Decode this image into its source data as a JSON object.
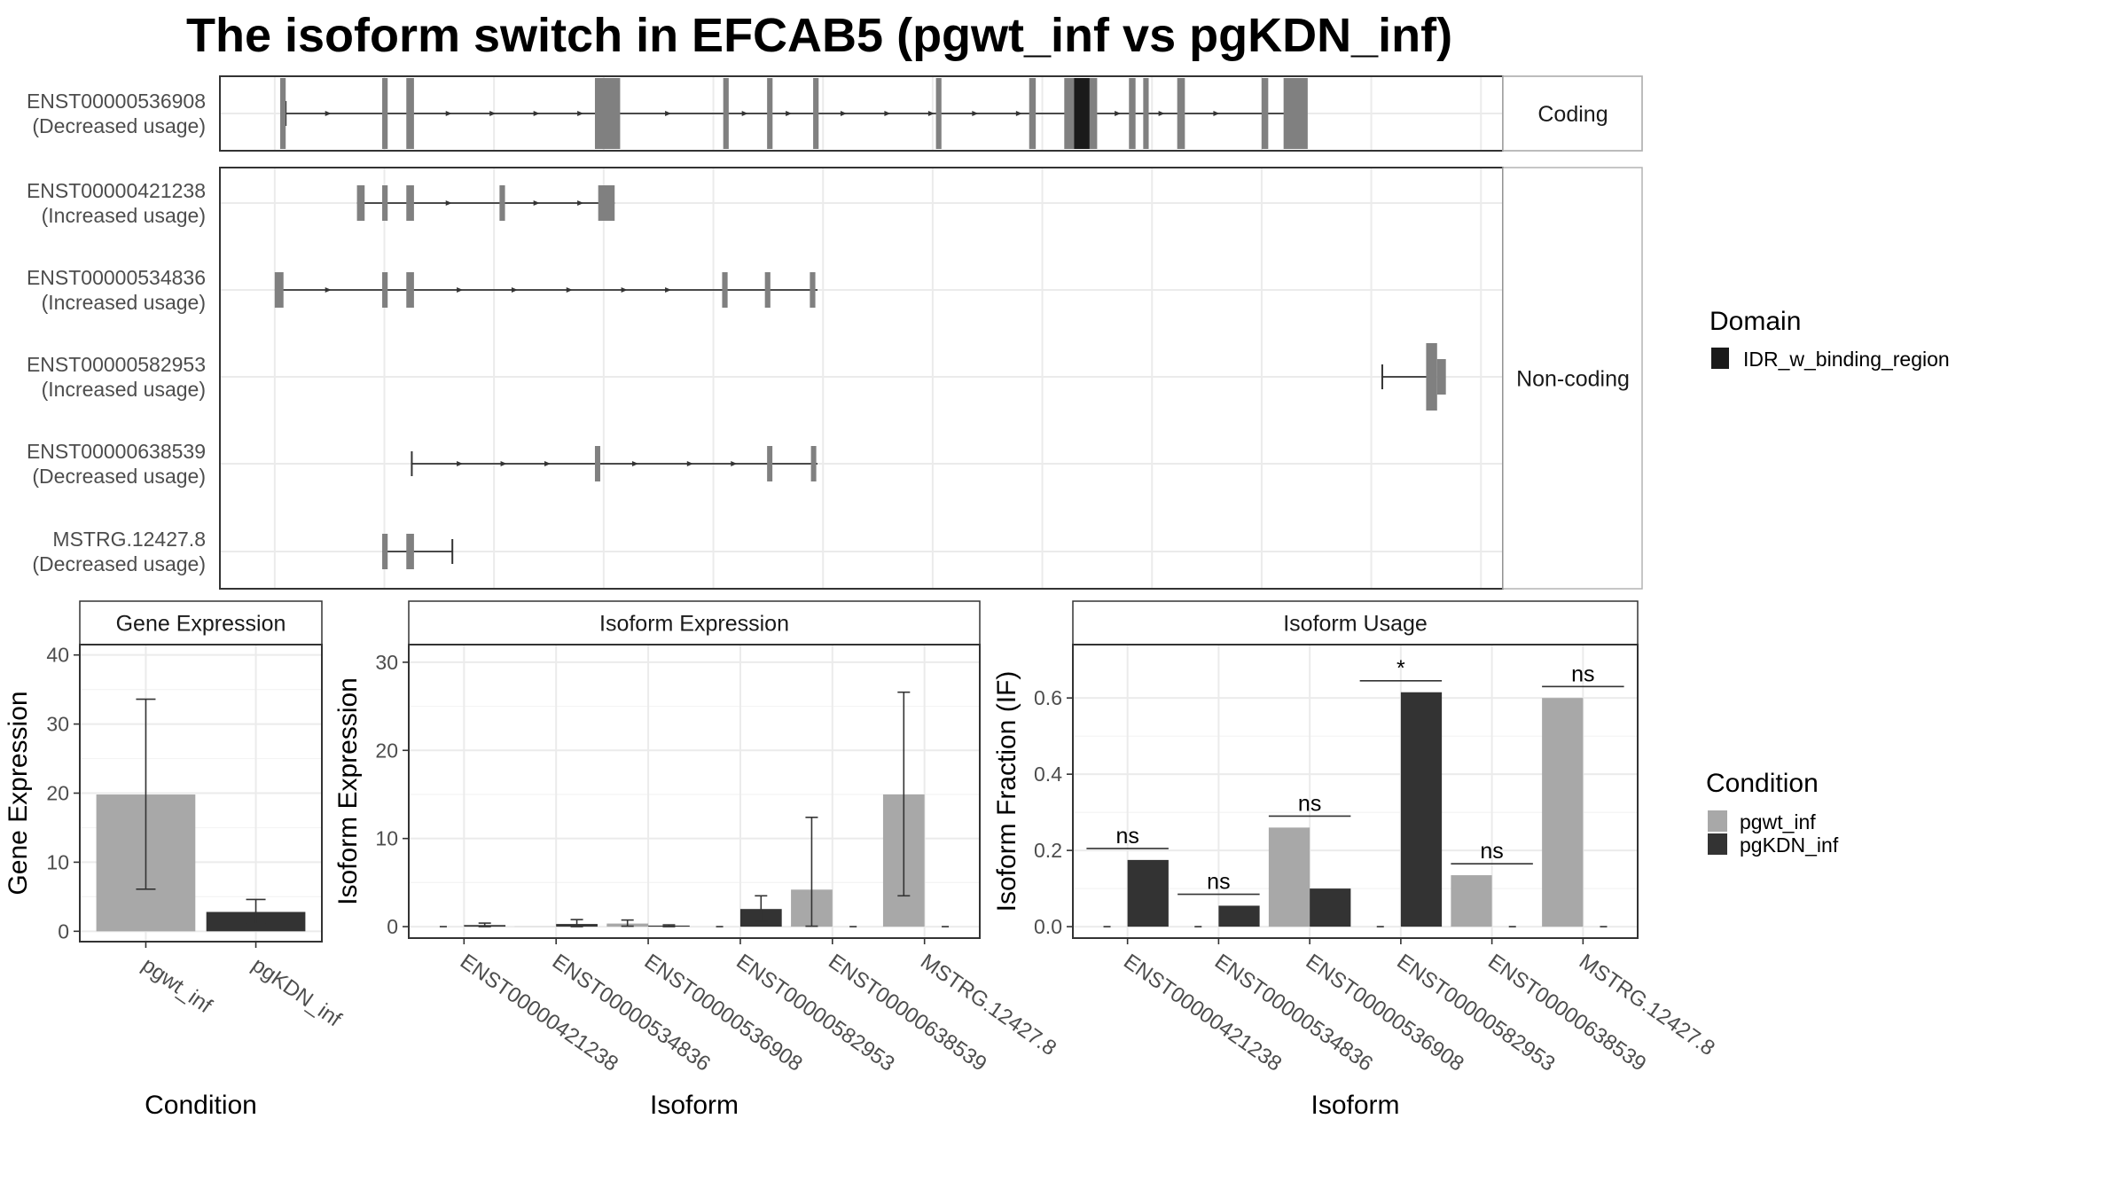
{
  "title": "The isoform switch in EFCAB5 (pgwt_inf vs pgKDN_inf)",
  "colors": {
    "pgwt_inf": "#a8a8a8",
    "pgKDN_inf": "#333333",
    "exon": "#808080",
    "domain": "#1a1a1a",
    "strip": "#ffffff",
    "grid": "#ebebeb",
    "border": "#333333"
  },
  "chart_data": [
    {
      "type": "gene-structure",
      "panel": "transcript-structure",
      "groups": [
        {
          "label": "Coding",
          "transcripts": [
            {
              "id": "ENST00000536908",
              "usage": "(Decreased usage)",
              "span": [
                0.1,
                9.3
              ],
              "tss_tick": 0.1,
              "exons": [
                [
                  0.05,
                  0.1
                ],
                [
                  0.98,
                  1.03
                ],
                [
                  1.2,
                  1.27
                ],
                [
                  2.92,
                  3.15
                ],
                [
                  4.09,
                  4.14
                ],
                [
                  4.49,
                  4.54
                ],
                [
                  4.91,
                  4.96
                ],
                [
                  6.03,
                  6.08
                ],
                [
                  6.88,
                  6.94
                ],
                [
                  7.2,
                  7.5
                ],
                [
                  7.79,
                  7.85
                ],
                [
                  7.92,
                  7.97
                ],
                [
                  8.23,
                  8.3
                ],
                [
                  9.0,
                  9.06
                ],
                [
                  9.2,
                  9.42
                ]
              ],
              "domains": [
                [
                  7.29,
                  7.43
                ]
              ],
              "arrows": [
                0.5,
                1.6,
                2.0,
                2.4,
                2.8,
                3.6,
                4.3,
                4.7,
                5.2,
                5.6,
                6.0,
                6.4,
                6.8,
                7.7,
                8.1,
                8.6
              ],
              "big_exons": [
                3,
                4,
                5,
                6,
                7,
                8,
                9,
                10,
                11,
                12,
                13,
                14
              ]
            }
          ]
        },
        {
          "label": "Non-coding",
          "transcripts": [
            {
              "id": "ENST00000421238",
              "usage": "(Increased usage)",
              "span": [
                0.75,
                3.1
              ],
              "exons": [
                [
                  0.75,
                  0.82
                ],
                [
                  0.98,
                  1.03
                ],
                [
                  1.2,
                  1.27
                ],
                [
                  2.05,
                  2.1
                ],
                [
                  2.95,
                  3.1
                ]
              ],
              "arrows": [
                1.6,
                2.4,
                2.8
              ]
            },
            {
              "id": "ENST00000534836",
              "usage": "(Increased usage)",
              "span": [
                0.0,
                4.95
              ],
              "exons": [
                [
                  0.0,
                  0.08
                ],
                [
                  0.98,
                  1.03
                ],
                [
                  1.2,
                  1.27
                ],
                [
                  4.08,
                  4.13
                ],
                [
                  4.47,
                  4.52
                ],
                [
                  4.88,
                  4.93
                ]
              ],
              "arrows": [
                0.5,
                1.7,
                2.2,
                2.7,
                3.2,
                3.6
              ]
            },
            {
              "id": "ENST00000582953",
              "usage": "(Increased usage)",
              "span": [
                10.1,
                10.55
              ],
              "tss_tick": 10.1,
              "exons": [
                [
                  10.5,
                  10.6
                ],
                [
                  10.6,
                  10.68
                ]
              ],
              "arrows": []
            },
            {
              "id": "ENST00000638539",
              "usage": "(Decreased usage)",
              "span": [
                1.25,
                4.95
              ],
              "tss_tick": 1.25,
              "exons": [
                [
                  2.92,
                  2.96
                ],
                [
                  4.49,
                  4.53
                ],
                [
                  4.89,
                  4.93
                ]
              ],
              "arrows": [
                1.7,
                2.1,
                2.5,
                3.3,
                3.8,
                4.2
              ]
            },
            {
              "id": "MSTRG.12427.8",
              "usage": "(Decreased usage)",
              "span": [
                0.98,
                1.62
              ],
              "tss_tick": 1.62,
              "exons": [
                [
                  0.98,
                  1.03
                ],
                [
                  1.2,
                  1.27
                ]
              ],
              "arrows": []
            }
          ]
        }
      ],
      "xlim": [
        -0.5,
        11.2
      ]
    },
    {
      "type": "bar",
      "panel": "gene-expression",
      "strip": "Gene Expression",
      "xlabel": "Condition",
      "ylabel": "Gene Expression",
      "categories": [
        "pgwt_inf",
        "pgKDN_inf"
      ],
      "values": [
        19.8,
        2.8
      ],
      "err_low": [
        6.1,
        1.1
      ],
      "err_high": [
        33.6,
        4.6
      ],
      "ylim": [
        -1.5,
        41.5
      ],
      "yticks": [
        0,
        10,
        20,
        30,
        40
      ]
    },
    {
      "type": "bar",
      "panel": "isoform-expression",
      "strip": "Isoform Expression",
      "xlabel": "Isoform",
      "ylabel": "Isoform Expression",
      "categories": [
        "ENST00000421238",
        "ENST00000534836",
        "ENST00000536908",
        "ENST00000582953",
        "ENST00000638539",
        "MSTRG.12427.8"
      ],
      "series": [
        {
          "name": "pgwt_inf",
          "values": [
            0.0,
            0.02,
            0.35,
            0.0,
            4.2,
            15.0
          ],
          "err_low": [
            0.0,
            0.0,
            0.05,
            0.0,
            0.05,
            3.5
          ],
          "err_high": [
            0.0,
            0.0,
            0.75,
            0.0,
            12.4,
            26.6
          ]
        },
        {
          "name": "pgKDN_inf",
          "values": [
            0.18,
            0.3,
            0.12,
            2.0,
            0.0,
            0.0
          ],
          "err_low": [
            0.0,
            0.0,
            0.0,
            0.6,
            0.0,
            0.0
          ],
          "err_high": [
            0.4,
            0.8,
            0.2,
            3.5,
            0.0,
            0.0
          ]
        }
      ],
      "ylim": [
        -1.3,
        32
      ],
      "yticks": [
        0,
        10,
        20,
        30
      ]
    },
    {
      "type": "bar",
      "panel": "isoform-usage",
      "strip": "Isoform Usage",
      "xlabel": "Isoform",
      "ylabel": "Isoform Fraction (IF)",
      "categories": [
        "ENST00000421238",
        "ENST00000534836",
        "ENST00000536908",
        "ENST00000582953",
        "ENST00000638539",
        "MSTRG.12427.8"
      ],
      "series": [
        {
          "name": "pgwt_inf",
          "values": [
            0.0,
            0.0,
            0.26,
            0.0,
            0.135,
            0.6
          ]
        },
        {
          "name": "pgKDN_inf",
          "values": [
            0.175,
            0.055,
            0.1,
            0.615,
            0.0,
            0.0
          ]
        }
      ],
      "significance": [
        "ns",
        "ns",
        "ns",
        "*",
        "ns",
        "ns"
      ],
      "ylim": [
        -0.03,
        0.74
      ],
      "yticks": [
        0.0,
        0.2,
        0.4,
        0.6
      ]
    }
  ],
  "legends": {
    "domain": {
      "title": "Domain",
      "items": [
        {
          "label": "IDR_w_binding_region"
        }
      ]
    },
    "condition": {
      "title": "Condition",
      "items": [
        {
          "label": "pgwt_inf"
        },
        {
          "label": "pgKDN_inf"
        }
      ]
    }
  }
}
